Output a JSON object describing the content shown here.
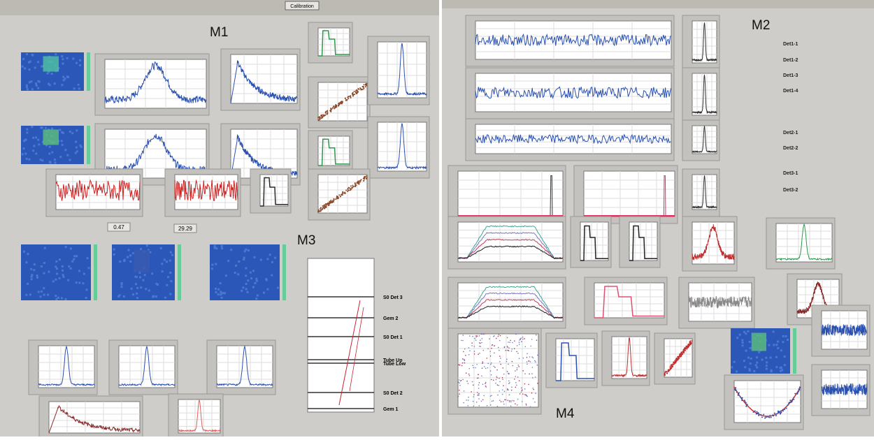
{
  "panel_labels": [
    "M1",
    "M2",
    "M3",
    "M4"
  ],
  "toolbar": {
    "button": "Calibration"
  },
  "m2": {
    "detectors": [
      "Det1-1",
      "Det1-2",
      "Det1-3",
      "Det1-4",
      "Det2-1",
      "Det2-2",
      "Det3-1",
      "Det3-2"
    ]
  },
  "m3": {
    "readouts": [
      "0.47",
      "29.29"
    ],
    "track_labels": [
      "S0 Det 3",
      "Gem 2",
      "S0 Det 1",
      "Tube Up",
      "Tube Low",
      "S0 Det 2",
      "Gem 1"
    ]
  }
}
